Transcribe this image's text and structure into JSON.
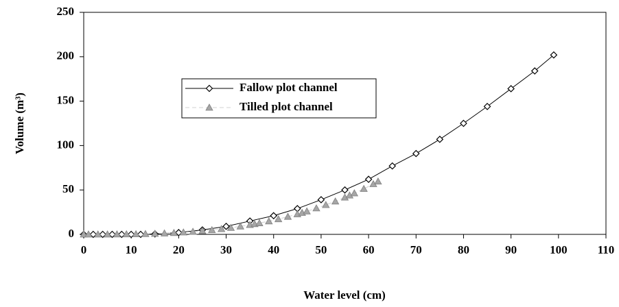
{
  "chart_data": {
    "type": "line",
    "x_label": "Water level (cm)",
    "y_label": "Volume (m³)",
    "xlim": [
      0,
      110
    ],
    "xticks": [
      0,
      10,
      20,
      30,
      40,
      50,
      60,
      70,
      80,
      90,
      100,
      110
    ],
    "ylim": [
      0,
      250
    ],
    "yticks": [
      0,
      50,
      100,
      150,
      200,
      250
    ],
    "grid": false,
    "legend": "upper left",
    "series": [
      {
        "name": "Fallow plot channel",
        "color": "#000000",
        "marker": "diamond",
        "line": "solid",
        "x": [
          0,
          2,
          4,
          6,
          8,
          10,
          12,
          15,
          20,
          25,
          30,
          35,
          40,
          45,
          50,
          55,
          60,
          65,
          70,
          75,
          80,
          85,
          90,
          95,
          99
        ],
        "values": [
          0,
          0,
          0,
          0,
          0,
          0,
          0,
          0.5,
          2,
          5,
          9,
          15,
          21,
          29,
          39,
          50,
          62,
          77,
          91,
          107,
          125,
          144,
          164,
          184,
          202
        ]
      },
      {
        "name": "Tilled plot channel",
        "color": "#a6a6a6",
        "marker": "triangle",
        "line": "dashed",
        "x": [
          0,
          1,
          3,
          5,
          7,
          9,
          11,
          13,
          15,
          17,
          19,
          21,
          23,
          25,
          27,
          29,
          31,
          33,
          35,
          36,
          37,
          39,
          41,
          43,
          45,
          46,
          47,
          49,
          51,
          53,
          55,
          56,
          57,
          59,
          61,
          62
        ],
        "values": [
          0,
          0,
          0,
          0,
          0.1,
          0.2,
          0.3,
          0.5,
          0.8,
          1.2,
          1.7,
          2.3,
          3,
          3.9,
          4.9,
          6.1,
          7.4,
          9,
          10.7,
          11.7,
          12.7,
          14.8,
          17.2,
          19.9,
          22.8,
          24.3,
          26,
          29.4,
          33.2,
          37.2,
          41.6,
          43.9,
          46.3,
          51.3,
          56.7,
          59.6
        ]
      }
    ]
  }
}
